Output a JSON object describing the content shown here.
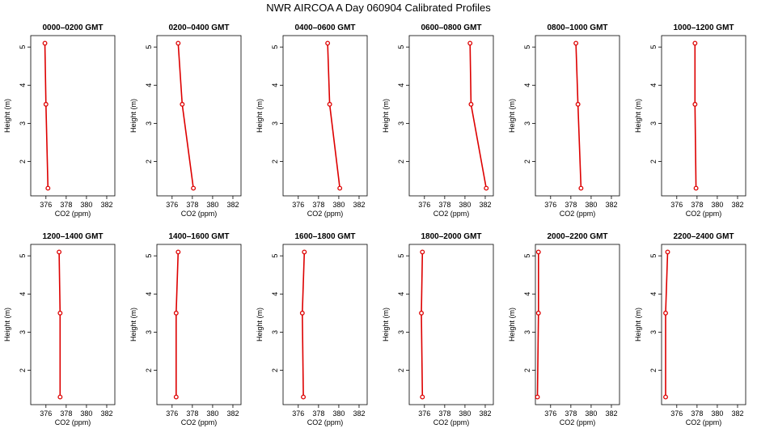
{
  "title": "NWR AIRCOA A  Day 060904  Calibrated Profiles",
  "colors": {
    "profile": "#dd0000",
    "axis": "#000000",
    "background": "#ffffff"
  },
  "chart_data": [
    {
      "type": "line",
      "title": "0000–0200 GMT",
      "xlabel": "CO2 (ppm)",
      "ylabel": "Height (m)",
      "xlim": [
        374.5,
        382.8
      ],
      "ylim": [
        1.1,
        5.3
      ],
      "grid": false,
      "xticks": [
        "376",
        "378",
        "380",
        "382"
      ],
      "yticks": [
        "2",
        "3",
        "4",
        "5"
      ],
      "x": [
        375.9,
        376.0,
        376.2
      ],
      "y": [
        5.1,
        3.5,
        1.3
      ]
    },
    {
      "type": "line",
      "title": "0200–0400 GMT",
      "xlabel": "CO2 (ppm)",
      "ylabel": "Height (m)",
      "xlim": [
        374.5,
        382.8
      ],
      "ylim": [
        1.1,
        5.3
      ],
      "grid": false,
      "xticks": [
        "376",
        "378",
        "380",
        "382"
      ],
      "yticks": [
        "2",
        "3",
        "4",
        "5"
      ],
      "x": [
        376.6,
        377.0,
        378.1
      ],
      "y": [
        5.1,
        3.5,
        1.3
      ]
    },
    {
      "type": "line",
      "title": "0400–0600 GMT",
      "xlabel": "CO2 (ppm)",
      "ylabel": "Height (m)",
      "xlim": [
        374.5,
        382.8
      ],
      "ylim": [
        1.1,
        5.3
      ],
      "grid": false,
      "xticks": [
        "376",
        "378",
        "380",
        "382"
      ],
      "yticks": [
        "2",
        "3",
        "4",
        "5"
      ],
      "x": [
        378.9,
        379.1,
        380.1
      ],
      "y": [
        5.1,
        3.5,
        1.3
      ]
    },
    {
      "type": "line",
      "title": "0600–0800 GMT",
      "xlabel": "CO2 (ppm)",
      "ylabel": "Height (m)",
      "xlim": [
        374.5,
        382.8
      ],
      "ylim": [
        1.1,
        5.3
      ],
      "grid": false,
      "xticks": [
        "376",
        "378",
        "380",
        "382"
      ],
      "yticks": [
        "2",
        "3",
        "4",
        "5"
      ],
      "x": [
        380.5,
        380.6,
        382.1
      ],
      "y": [
        5.1,
        3.5,
        1.3
      ]
    },
    {
      "type": "line",
      "title": "0800–1000 GMT",
      "xlabel": "CO2 (ppm)",
      "ylabel": "Height (m)",
      "xlim": [
        374.5,
        382.8
      ],
      "ylim": [
        1.1,
        5.3
      ],
      "grid": false,
      "xticks": [
        "376",
        "378",
        "380",
        "382"
      ],
      "yticks": [
        "2",
        "3",
        "4",
        "5"
      ],
      "x": [
        378.5,
        378.7,
        379.0
      ],
      "y": [
        5.1,
        3.5,
        1.3
      ]
    },
    {
      "type": "line",
      "title": "1000–1200 GMT",
      "xlabel": "CO2 (ppm)",
      "ylabel": "Height (m)",
      "xlim": [
        374.5,
        382.8
      ],
      "ylim": [
        1.1,
        5.3
      ],
      "grid": false,
      "xticks": [
        "376",
        "378",
        "380",
        "382"
      ],
      "yticks": [
        "2",
        "3",
        "4",
        "5"
      ],
      "x": [
        377.8,
        377.8,
        377.9
      ],
      "y": [
        5.1,
        3.5,
        1.3
      ]
    },
    {
      "type": "line",
      "title": "1200–1400 GMT",
      "xlabel": "CO2 (ppm)",
      "ylabel": "Height (m)",
      "xlim": [
        374.5,
        382.8
      ],
      "ylim": [
        1.1,
        5.3
      ],
      "grid": false,
      "xticks": [
        "376",
        "378",
        "380",
        "382"
      ],
      "yticks": [
        "2",
        "3",
        "4",
        "5"
      ],
      "x": [
        377.3,
        377.4,
        377.4
      ],
      "y": [
        5.1,
        3.5,
        1.3
      ]
    },
    {
      "type": "line",
      "title": "1400–1600 GMT",
      "xlabel": "CO2 (ppm)",
      "ylabel": "Height (m)",
      "xlim": [
        374.5,
        382.8
      ],
      "ylim": [
        1.1,
        5.3
      ],
      "grid": false,
      "xticks": [
        "376",
        "378",
        "380",
        "382"
      ],
      "yticks": [
        "2",
        "3",
        "4",
        "5"
      ],
      "x": [
        376.6,
        376.4,
        376.4
      ],
      "y": [
        5.1,
        3.5,
        1.3
      ]
    },
    {
      "type": "line",
      "title": "1600–1800 GMT",
      "xlabel": "CO2 (ppm)",
      "ylabel": "Height (m)",
      "xlim": [
        374.5,
        382.8
      ],
      "ylim": [
        1.1,
        5.3
      ],
      "grid": false,
      "xticks": [
        "376",
        "378",
        "380",
        "382"
      ],
      "yticks": [
        "2",
        "3",
        "4",
        "5"
      ],
      "x": [
        376.6,
        376.4,
        376.5
      ],
      "y": [
        5.1,
        3.5,
        1.3
      ]
    },
    {
      "type": "line",
      "title": "1800–2000 GMT",
      "xlabel": "CO2 (ppm)",
      "ylabel": "Height (m)",
      "xlim": [
        374.5,
        382.8
      ],
      "ylim": [
        1.1,
        5.3
      ],
      "grid": false,
      "xticks": [
        "376",
        "378",
        "380",
        "382"
      ],
      "yticks": [
        "2",
        "3",
        "4",
        "5"
      ],
      "x": [
        375.8,
        375.7,
        375.8
      ],
      "y": [
        5.1,
        3.5,
        1.3
      ]
    },
    {
      "type": "line",
      "title": "2000–2200 GMT",
      "xlabel": "CO2 (ppm)",
      "ylabel": "Height (m)",
      "xlim": [
        374.5,
        382.8
      ],
      "ylim": [
        1.1,
        5.3
      ],
      "grid": false,
      "xticks": [
        "376",
        "378",
        "380",
        "382"
      ],
      "yticks": [
        "2",
        "3",
        "4",
        "5"
      ],
      "x": [
        374.8,
        374.8,
        374.7
      ],
      "y": [
        5.1,
        3.5,
        1.3
      ]
    },
    {
      "type": "line",
      "title": "2200–2400 GMT",
      "xlabel": "CO2 (ppm)",
      "ylabel": "Height (m)",
      "xlim": [
        374.5,
        382.8
      ],
      "ylim": [
        1.1,
        5.3
      ],
      "grid": false,
      "xticks": [
        "376",
        "378",
        "380",
        "382"
      ],
      "yticks": [
        "2",
        "3",
        "4",
        "5"
      ],
      "x": [
        375.1,
        374.9,
        374.9
      ],
      "y": [
        5.1,
        3.5,
        1.3
      ]
    }
  ]
}
